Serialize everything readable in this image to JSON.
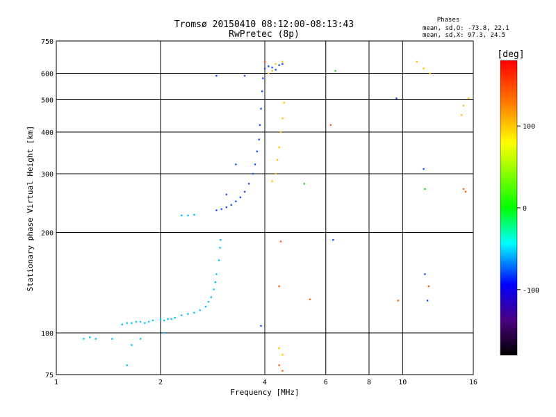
{
  "chart_data": {
    "type": "scatter",
    "title": "Tromsø 20150410 08:12:00-08:13:43",
    "subtitle": "RwPretec (8p)",
    "xlabel": "Frequency [MHz]",
    "ylabel": "Stationary phase Virtual Height [km]",
    "xscale": "log",
    "yscale": "log",
    "xlim": [
      1,
      16
    ],
    "ylim": [
      75,
      750
    ],
    "x_ticks": [
      1,
      2,
      4,
      6,
      8,
      10,
      16
    ],
    "y_ticks": [
      75,
      100,
      200,
      300,
      400,
      500,
      600,
      750
    ],
    "grid": true,
    "phase_stats": {
      "heading": "Phases",
      "line_o": "mean, sd,O: -73.8, 22.1",
      "line_x": "mean, sd,X:  97.3, 24.5"
    },
    "colorbar": {
      "label": "[deg]",
      "range": [
        -180,
        180
      ],
      "ticks": [
        100,
        0,
        -100
      ],
      "colors": [
        "#ff0000",
        "#ff8000",
        "#ffff00",
        "#00ff00",
        "#00ffff",
        "#0000ff",
        "#4b0082",
        "#000000"
      ]
    },
    "series": [
      {
        "color": "#00c8ff",
        "points": [
          [
            1.2,
            96
          ],
          [
            1.25,
            97
          ],
          [
            1.3,
            96
          ],
          [
            1.45,
            96
          ],
          [
            1.55,
            106
          ],
          [
            1.6,
            107
          ],
          [
            1.65,
            107
          ],
          [
            1.7,
            108
          ],
          [
            1.75,
            108
          ],
          [
            1.8,
            107
          ],
          [
            1.85,
            108
          ],
          [
            1.9,
            109
          ],
          [
            2.0,
            110
          ],
          [
            2.05,
            109
          ],
          [
            2.1,
            110
          ],
          [
            2.15,
            110
          ],
          [
            2.2,
            111
          ],
          [
            2.3,
            113
          ],
          [
            2.4,
            114
          ],
          [
            2.5,
            115
          ],
          [
            2.6,
            117
          ],
          [
            2.7,
            120
          ],
          [
            2.75,
            124
          ],
          [
            2.8,
            128
          ],
          [
            2.85,
            135
          ],
          [
            2.88,
            142
          ],
          [
            2.9,
            150
          ],
          [
            2.95,
            165
          ],
          [
            2.97,
            180
          ],
          [
            2.98,
            190
          ],
          [
            2.3,
            225
          ],
          [
            2.4,
            225
          ],
          [
            2.5,
            226
          ],
          [
            1.6,
            80
          ],
          [
            1.65,
            92
          ],
          [
            2.05,
            100
          ],
          [
            1.75,
            96
          ]
        ]
      },
      {
        "color": "#1e50ff",
        "points": [
          [
            2.9,
            233
          ],
          [
            3.0,
            235
          ],
          [
            3.1,
            238
          ],
          [
            3.2,
            242
          ],
          [
            3.3,
            248
          ],
          [
            3.4,
            255
          ],
          [
            3.5,
            265
          ],
          [
            3.6,
            280
          ],
          [
            3.7,
            300
          ],
          [
            3.75,
            320
          ],
          [
            3.8,
            350
          ],
          [
            3.85,
            380
          ],
          [
            3.87,
            420
          ],
          [
            3.9,
            470
          ],
          [
            3.93,
            530
          ],
          [
            3.95,
            580
          ],
          [
            4.0,
            620
          ],
          [
            4.1,
            630
          ],
          [
            4.2,
            625
          ],
          [
            4.3,
            615
          ],
          [
            4.4,
            635
          ],
          [
            4.5,
            640
          ],
          [
            3.3,
            320
          ],
          [
            3.1,
            260
          ],
          [
            3.5,
            590
          ],
          [
            2.9,
            590
          ],
          [
            3.9,
            105
          ],
          [
            9.6,
            505
          ],
          [
            11.5,
            310
          ],
          [
            11.6,
            150
          ],
          [
            11.8,
            125
          ],
          [
            6.3,
            190
          ]
        ]
      },
      {
        "color": "#ffc800",
        "points": [
          [
            4.2,
            285
          ],
          [
            4.3,
            300
          ],
          [
            4.35,
            330
          ],
          [
            4.4,
            360
          ],
          [
            4.45,
            400
          ],
          [
            4.5,
            440
          ],
          [
            4.55,
            490
          ],
          [
            4.1,
            600
          ],
          [
            4.2,
            610
          ],
          [
            4.3,
            640
          ],
          [
            4.5,
            650
          ],
          [
            4.4,
            90
          ],
          [
            4.5,
            86
          ],
          [
            11.0,
            650
          ],
          [
            12.0,
            600
          ],
          [
            14.8,
            450
          ],
          [
            15.0,
            480
          ],
          [
            15.5,
            505
          ],
          [
            11.5,
            620
          ]
        ]
      },
      {
        "color": "#ff6400",
        "points": [
          [
            4.4,
            80
          ],
          [
            4.5,
            77
          ],
          [
            4.4,
            138
          ],
          [
            5.4,
            126
          ],
          [
            6.2,
            420
          ],
          [
            9.7,
            125
          ],
          [
            11.9,
            138
          ],
          [
            15.0,
            270
          ],
          [
            15.2,
            265
          ],
          [
            4.45,
            188
          ],
          [
            4.0,
            650
          ]
        ]
      },
      {
        "color": "#28dc28",
        "points": [
          [
            5.2,
            280
          ],
          [
            11.6,
            270
          ],
          [
            6.4,
            610
          ]
        ]
      }
    ]
  }
}
